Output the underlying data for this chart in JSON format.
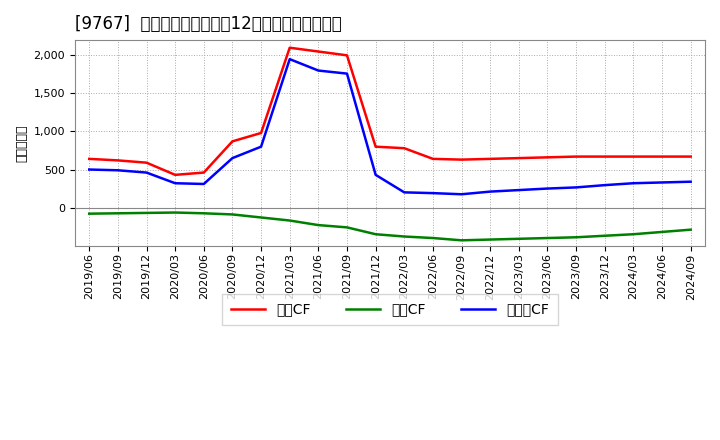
{
  "title": "[9767]  キャッシュフローの12か月移動合計の推移",
  "ylabel": "（百万円）",
  "x_labels": [
    "2019/06",
    "2019/09",
    "2019/12",
    "2020/03",
    "2020/06",
    "2020/09",
    "2020/12",
    "2021/03",
    "2021/06",
    "2021/09",
    "2021/12",
    "2022/03",
    "2022/06",
    "2022/09",
    "2022/12",
    "2023/03",
    "2023/06",
    "2023/09",
    "2023/12",
    "2024/03",
    "2024/06",
    "2024/09"
  ],
  "operating_cf": [
    640,
    620,
    590,
    430,
    460,
    870,
    980,
    2100,
    2050,
    2000,
    800,
    780,
    640,
    630,
    640,
    650,
    660,
    670,
    670,
    670,
    670,
    670
  ],
  "investing_cf": [
    -80,
    -75,
    -70,
    -65,
    -75,
    -90,
    -130,
    -170,
    -230,
    -260,
    -350,
    -380,
    -400,
    -430,
    -420,
    -410,
    -400,
    -390,
    -370,
    -350,
    -320,
    -290
  ],
  "free_cf": [
    500,
    490,
    460,
    320,
    310,
    650,
    800,
    1950,
    1800,
    1760,
    430,
    200,
    190,
    175,
    210,
    230,
    250,
    265,
    295,
    320,
    330,
    340
  ],
  "operating_cf_color": "#ff0000",
  "investing_cf_color": "#008000",
  "free_cf_color": "#0000ff",
  "bg_color": "#ffffff",
  "plot_bg_color": "#ffffff",
  "grid_color": "#aaaaaa",
  "ylim": [
    -500,
    2200
  ],
  "yticks": [
    0,
    500,
    1000,
    1500,
    2000
  ],
  "title_fontsize": 12,
  "label_fontsize": 9,
  "tick_fontsize": 8,
  "legend_labels": [
    "営業CF",
    "投資CF",
    "フリーCF"
  ],
  "line_width": 1.8
}
